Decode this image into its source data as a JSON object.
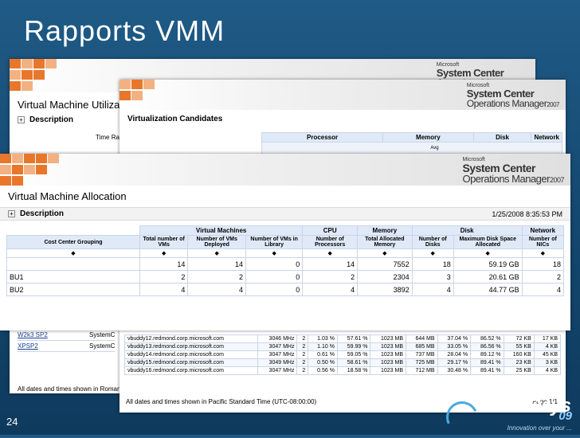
{
  "slide": {
    "title": "Rapports VMM",
    "number": "24"
  },
  "brand": {
    "logo": "TechDays",
    "year": "09",
    "tagline": "Innovation over your ..."
  },
  "product": {
    "vendor": "Microsoft",
    "line1": "System Center",
    "line2": "Operations Manager",
    "version": "2007"
  },
  "colors": {
    "tile_orange": "#e8772b",
    "tile_light": "#f3b182",
    "header_blue": "#dfe9f7",
    "bg": "#1f5b86"
  },
  "report_back": {
    "title": "Virtual Machine Utilization",
    "description": "Description",
    "time_range_label": "Time Range",
    "rows": [
      {
        "name": "W2k3 SP2",
        "value": "SystemC"
      },
      {
        "name": "XPSP2",
        "value": "SystemC"
      }
    ],
    "footer": "All dates and times shown in Romance"
  },
  "report_mid": {
    "title": "Virtualization Candidates",
    "groups": [
      "Processor",
      "Memory",
      "Disk",
      "Network"
    ],
    "memory_sub": "Avg",
    "rows": [
      {
        "host": "vbuddy12.redmond.corp.microsoft.com",
        "mhz": "3046 MHz",
        "cpus": "2",
        "pct1": "1.03 %",
        "pct2": "57.61 %",
        "mem": "1023 MB",
        "mem2": "644 MB",
        "disk1": "37.04 %",
        "disk2": "86.52 %",
        "net1": "72 KB",
        "net2": "17 KB"
      },
      {
        "host": "vbuddy13.redmond.corp.microsoft.com",
        "mhz": "3047 MHz",
        "cpus": "2",
        "pct1": "1.10 %",
        "pct2": "59.99 %",
        "mem": "1023 MB",
        "mem2": "685 MB",
        "disk1": "33.05 %",
        "disk2": "86.56 %",
        "net1": "55 KB",
        "net2": "4 KB"
      },
      {
        "host": "vbuddy14.redmond.corp.microsoft.com",
        "mhz": "3047 MHz",
        "cpus": "2",
        "pct1": "0.61 %",
        "pct2": "59.05 %",
        "mem": "1023 MB",
        "mem2": "737 MB",
        "disk1": "28.04 %",
        "disk2": "89.12 %",
        "net1": "160 KB",
        "net2": "45 KB"
      },
      {
        "host": "vbuddy15.redmond.corp.microsoft.com",
        "mhz": "3049 MHz",
        "cpus": "2",
        "pct1": "0.50 %",
        "pct2": "58.61 %",
        "mem": "1023 MB",
        "mem2": "725 MB",
        "disk1": "29.17 %",
        "disk2": "89.41 %",
        "net1": "23 KB",
        "net2": "3 KB"
      },
      {
        "host": "vbuddy16.redmond.corp.microsoft.com",
        "mhz": "3047 MHz",
        "cpus": "2",
        "pct1": "0.56 %",
        "pct2": "18.58 %",
        "mem": "1023 MB",
        "mem2": "712 MB",
        "disk1": "30.48 %",
        "disk2": "89.41 %",
        "net1": "25 KB",
        "net2": "4 KB"
      }
    ],
    "footer": "All dates and times shown in Pacific Standard Time (UTC-08:00:00)",
    "page": "Page 1/1"
  },
  "report_front": {
    "title": "Virtual Machine Allocation",
    "description": "Description",
    "date": "1/25/2008 8:35:53 PM",
    "groups": {
      "vms": "Virtual Machines",
      "cpu": "CPU",
      "memory": "Memory",
      "disk": "Disk",
      "network": "Network"
    },
    "columns": [
      "Cost Center Grouping",
      "Total number of VMs",
      "Number of VMs Deployed",
      "Number of VMs in Library",
      "Number of Processors",
      "Total Allocated Memory",
      "Number of Disks",
      "Maximum Disk Space Allocated",
      "Number of NICs"
    ],
    "rows": [
      {
        "name": "",
        "total": "14",
        "deployed": "14",
        "library": "0",
        "procs": "14",
        "memory": "7552",
        "disks": "18",
        "space": "59.19 GB",
        "nics": "18"
      },
      {
        "name": "BU1",
        "total": "2",
        "deployed": "2",
        "library": "0",
        "procs": "2",
        "memory": "2304",
        "disks": "3",
        "space": "20.61 GB",
        "nics": "2"
      },
      {
        "name": "BU2",
        "total": "4",
        "deployed": "4",
        "library": "0",
        "procs": "4",
        "memory": "3892",
        "disks": "4",
        "space": "44.77 GB",
        "nics": "4"
      }
    ]
  }
}
